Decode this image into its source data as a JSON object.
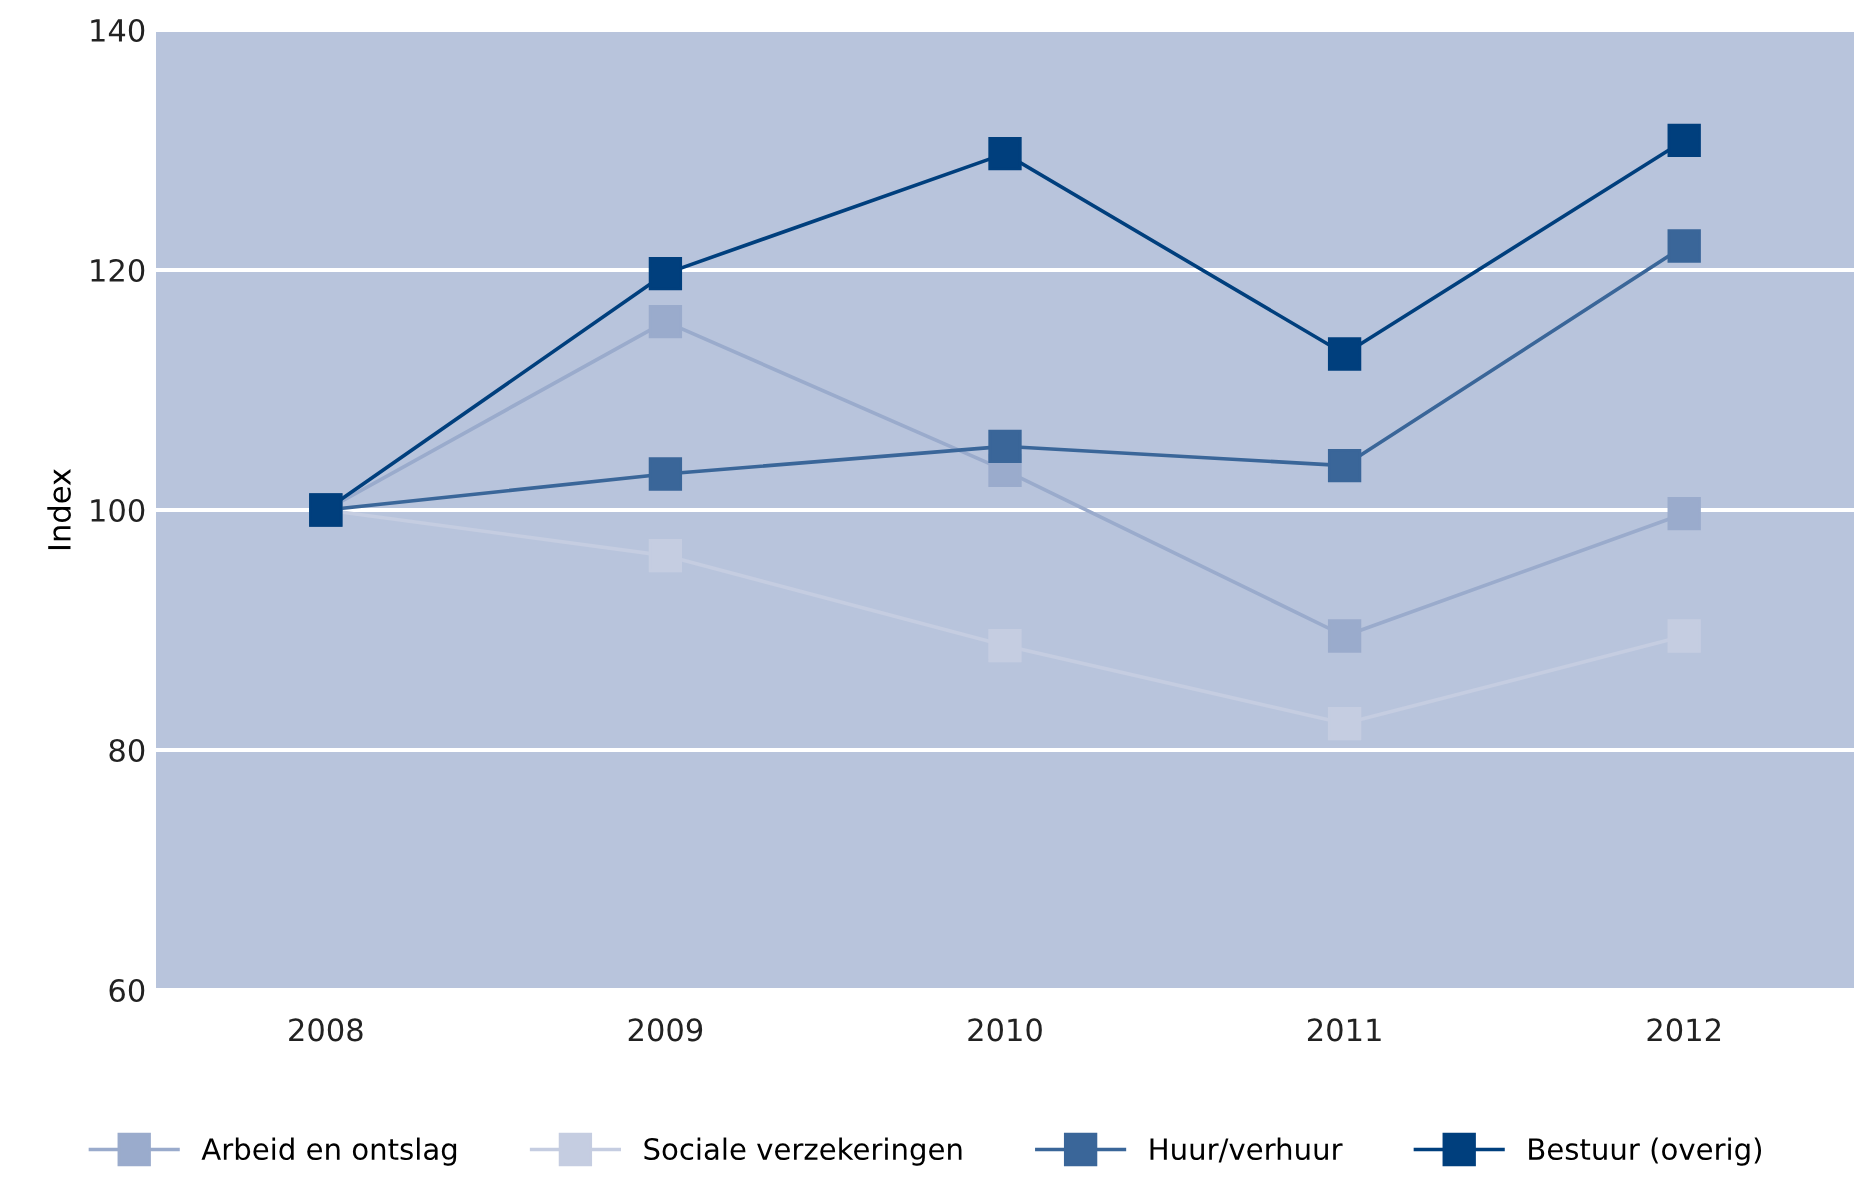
{
  "chart_data": {
    "type": "line",
    "ylabel": "Index",
    "categories": [
      "2008",
      "2009",
      "2010",
      "2011",
      "2012"
    ],
    "ylim": [
      60,
      140
    ],
    "yticks": [
      60,
      80,
      100,
      120,
      140
    ],
    "grid": "y",
    "legend": "bottom",
    "marker": "square",
    "line_style": "solid",
    "series": [
      {
        "name": "Arbeid en ontslag",
        "color": "#9aabcc",
        "values": [
          100,
          115.7,
          103.3,
          89.5,
          99.7
        ]
      },
      {
        "name": "Sociale verzekeringen",
        "color": "#c5cde1",
        "values": [
          100,
          96.2,
          88.7,
          82.2,
          89.5
        ]
      },
      {
        "name": "Huur/verhuur",
        "color": "#3a6699",
        "values": [
          100,
          103,
          105.3,
          103.7,
          122
        ]
      },
      {
        "name": "Bestuur (overig)",
        "color": "#003f7d",
        "values": [
          100,
          119.7,
          129.7,
          113,
          130.8
        ]
      }
    ]
  }
}
